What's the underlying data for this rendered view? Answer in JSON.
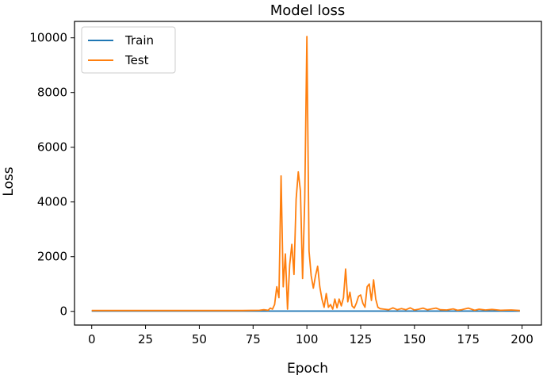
{
  "chart_data": {
    "type": "line",
    "title": "Model loss",
    "xlabel": "Epoch",
    "ylabel": "Loss",
    "xlim": [
      -8,
      209
    ],
    "ylim": [
      -500,
      10600
    ],
    "xticks": [
      0,
      25,
      50,
      75,
      100,
      125,
      150,
      175,
      200
    ],
    "yticks": [
      0,
      2000,
      4000,
      6000,
      8000,
      10000
    ],
    "grid": false,
    "legend_position": "top-left",
    "series": [
      {
        "name": "Train",
        "color": "#1f77b4",
        "x": [
          0,
          25,
          50,
          75,
          100,
          125,
          150,
          175,
          199
        ],
        "y": [
          12,
          10,
          10,
          10,
          10,
          10,
          10,
          10,
          10
        ]
      },
      {
        "name": "Test",
        "color": "#ff7f0e",
        "x": [
          0,
          20,
          40,
          60,
          70,
          78,
          80,
          82,
          83,
          84,
          85,
          86,
          87,
          88,
          89,
          90,
          91,
          92,
          93,
          94,
          95,
          96,
          97,
          98,
          99,
          100,
          101,
          102,
          103,
          104,
          105,
          106,
          107,
          108,
          109,
          110,
          111,
          112,
          113,
          114,
          115,
          116,
          117,
          118,
          119,
          120,
          121,
          122,
          123,
          124,
          125,
          126,
          127,
          128,
          129,
          130,
          131,
          132,
          133,
          134,
          136,
          138,
          140,
          142,
          144,
          146,
          148,
          150,
          152,
          154,
          156,
          158,
          160,
          162,
          165,
          168,
          170,
          172,
          175,
          178,
          180,
          183,
          186,
          190,
          195,
          199
        ],
        "y": [
          30,
          30,
          30,
          30,
          30,
          40,
          60,
          40,
          120,
          80,
          250,
          900,
          500,
          4950,
          900,
          2100,
          80,
          1700,
          2450,
          1350,
          4100,
          5100,
          4400,
          1200,
          4100,
          10050,
          2200,
          1300,
          850,
          1300,
          1650,
          900,
          450,
          150,
          650,
          150,
          250,
          80,
          450,
          130,
          450,
          200,
          500,
          1550,
          350,
          700,
          200,
          120,
          300,
          550,
          600,
          300,
          150,
          900,
          1000,
          400,
          1150,
          450,
          150,
          100,
          80,
          60,
          130,
          60,
          100,
          60,
          130,
          50,
          80,
          120,
          60,
          90,
          120,
          60,
          50,
          90,
          40,
          60,
          120,
          40,
          80,
          50,
          70,
          40,
          50,
          30
        ]
      }
    ]
  }
}
